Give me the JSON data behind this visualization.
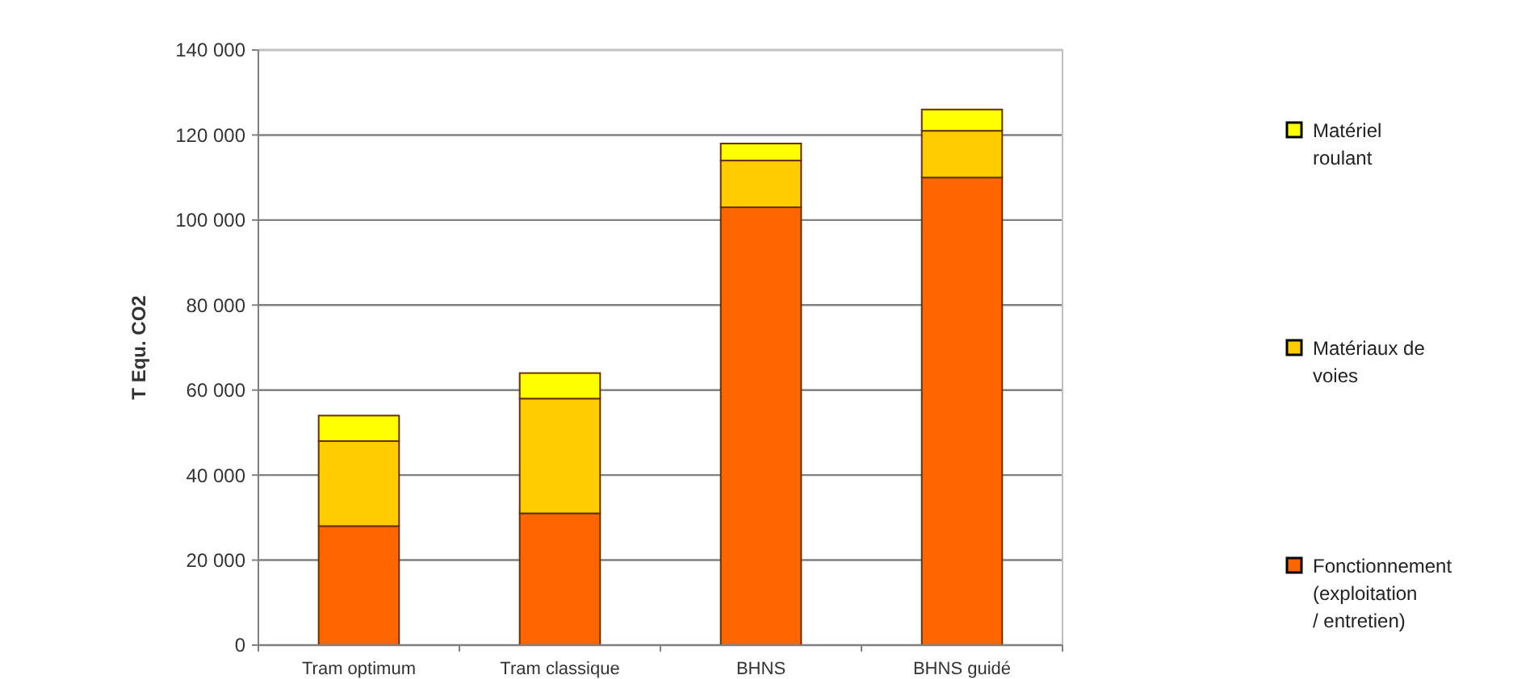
{
  "chart_data": {
    "type": "bar",
    "ylabel": "T Equ. CO2",
    "categories": [
      "Tram optimum",
      "Tram classique",
      "BHNS",
      "BHNS guidé"
    ],
    "stacked": true,
    "series": [
      {
        "name": "Fonctionnement (exploitation / entretien)",
        "color": "#ff6600",
        "values": [
          28000,
          31000,
          103000,
          110000
        ]
      },
      {
        "name": "Matériaux de voies",
        "color": "#ffcc00",
        "values": [
          20000,
          27000,
          11000,
          11000
        ]
      },
      {
        "name": "Matériel roulant",
        "color": "#ffff00",
        "values": [
          6000,
          6000,
          4000,
          5000
        ]
      }
    ],
    "ylim": [
      0,
      140000
    ],
    "yticks": [
      {
        "value": 0,
        "label": "0"
      },
      {
        "value": 20000,
        "label": "20 000"
      },
      {
        "value": 40000,
        "label": "40 000"
      },
      {
        "value": 60000,
        "label": "60 000"
      },
      {
        "value": 80000,
        "label": "80 000"
      },
      {
        "value": 100000,
        "label": "100 000"
      },
      {
        "value": 120000,
        "label": "120 000"
      },
      {
        "value": 140000,
        "label": "140 000"
      }
    ],
    "grid": "y",
    "legend": "right"
  }
}
